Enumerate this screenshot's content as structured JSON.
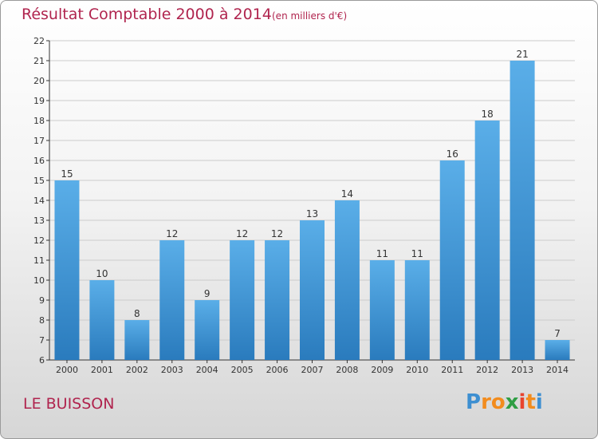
{
  "chart_data": {
    "type": "bar",
    "title": "Résultat Comptable 2000 à 2014",
    "subtitle": "(en milliers d'€)",
    "categories": [
      "2000",
      "2001",
      "2002",
      "2003",
      "2004",
      "2005",
      "2006",
      "2007",
      "2008",
      "2009",
      "2010",
      "2011",
      "2012",
      "2013",
      "2014"
    ],
    "values": [
      15,
      10,
      8,
      12,
      9,
      12,
      12,
      13,
      14,
      11,
      11,
      16,
      18,
      21,
      7
    ],
    "ylim": [
      6,
      22
    ],
    "yticks": [
      6,
      7,
      8,
      9,
      10,
      11,
      12,
      13,
      14,
      15,
      16,
      17,
      18,
      19,
      20,
      21,
      22
    ],
    "grid": true,
    "xlabel": "",
    "ylabel": "",
    "colors": {
      "bar_top": "#5aaee8",
      "bar_bottom": "#2a7bbd",
      "grid": "#cccccc",
      "axis": "#333333"
    }
  },
  "commune": "LE BUISSON",
  "logo": {
    "letters": [
      "P",
      "r",
      "o",
      "x",
      "i",
      "t",
      "i"
    ],
    "colors": [
      "#3d8fd1",
      "#f28c1e",
      "#f28c1e",
      "#2f9e44",
      "#e8442e",
      "#f28c1e",
      "#3d8fd1"
    ]
  }
}
